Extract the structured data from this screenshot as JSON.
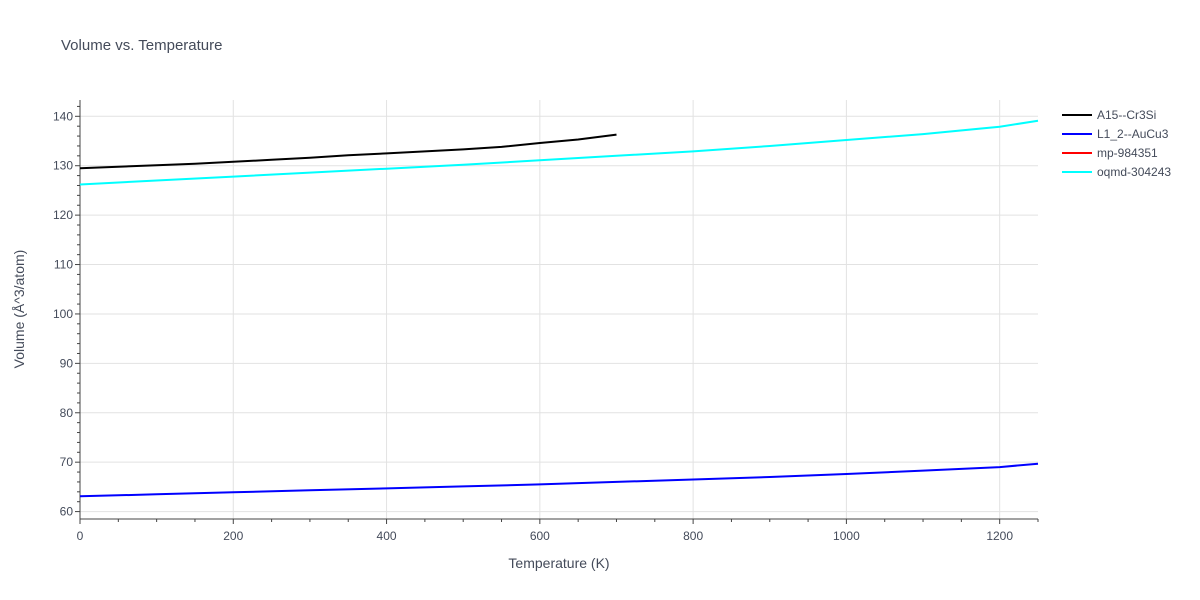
{
  "chart_data": {
    "type": "line",
    "title": "Volume vs. Temperature",
    "xlabel": "Temperature (K)",
    "ylabel": "Volume (Å^3/atom)",
    "xlim": [
      0,
      1250
    ],
    "ylim": [
      58.5,
      143.3
    ],
    "x_ticks": [
      0,
      200,
      400,
      600,
      800,
      1000,
      1200
    ],
    "y_ticks": [
      60,
      70,
      80,
      90,
      100,
      110,
      120,
      130,
      140
    ],
    "grid": true,
    "legend_position": "top-right",
    "series": [
      {
        "name": "A15--Cr3Si",
        "color": "#000000",
        "x": [
          0,
          50,
          100,
          150,
          200,
          250,
          300,
          350,
          400,
          450,
          500,
          550,
          600,
          650,
          700
        ],
        "y": [
          129.5,
          129.8,
          130.1,
          130.4,
          130.8,
          131.2,
          131.6,
          132.1,
          132.5,
          132.9,
          133.3,
          133.8,
          134.6,
          135.3,
          136.3
        ]
      },
      {
        "name": "L1_2--AuCu3",
        "color": "#0000ff",
        "x": [
          0,
          100,
          200,
          300,
          400,
          500,
          600,
          700,
          800,
          900,
          1000,
          1100,
          1200,
          1250
        ],
        "y": [
          63.1,
          63.5,
          63.9,
          64.3,
          64.7,
          65.1,
          65.5,
          66.0,
          66.5,
          67.0,
          67.6,
          68.3,
          69.0,
          69.7
        ]
      },
      {
        "name": "mp-984351",
        "color": "#ff0000",
        "x": [],
        "y": []
      },
      {
        "name": "oqmd-304243",
        "color": "#00ffff",
        "x": [
          0,
          100,
          200,
          300,
          400,
          500,
          600,
          700,
          800,
          900,
          1000,
          1100,
          1200,
          1250
        ],
        "y": [
          126.2,
          127.0,
          127.8,
          128.6,
          129.4,
          130.2,
          131.1,
          132.0,
          132.9,
          134.0,
          135.2,
          136.4,
          137.9,
          139.1
        ]
      }
    ]
  }
}
